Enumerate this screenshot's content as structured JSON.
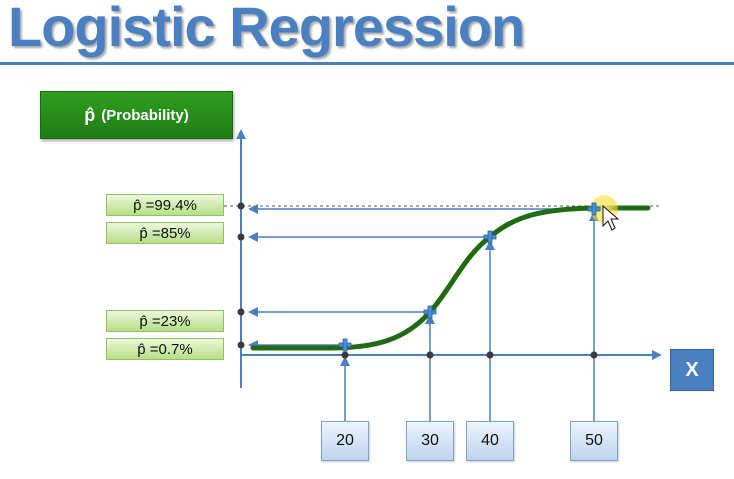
{
  "title": "Logistic Regression",
  "y_axis_box": {
    "symbol": "p̂",
    "label": "(Probability)"
  },
  "x_axis_box": "X",
  "probability_labels": [
    "p̂ =99.4%",
    "p̂ =85%",
    "p̂ =23%",
    "p̂ =0.7%"
  ],
  "x_value_labels": [
    "20",
    "30",
    "40",
    "50"
  ],
  "colors": {
    "title": "#4a7fc1",
    "axis": "#4a7fc1",
    "curve": "#1e6b12",
    "probability_box": "#2f9e1f",
    "marker": "#4a90d9",
    "cursor_highlight": "#ffe94d"
  },
  "curve": {
    "type": "logistic",
    "points": [
      {
        "x": 20,
        "p": 0.7
      },
      {
        "x": 30,
        "p": 23
      },
      {
        "x": 40,
        "p": 85
      },
      {
        "x": 50,
        "p": 99.4
      }
    ]
  },
  "icons": [
    "plus-marker-icon",
    "mouse-cursor-icon"
  ]
}
